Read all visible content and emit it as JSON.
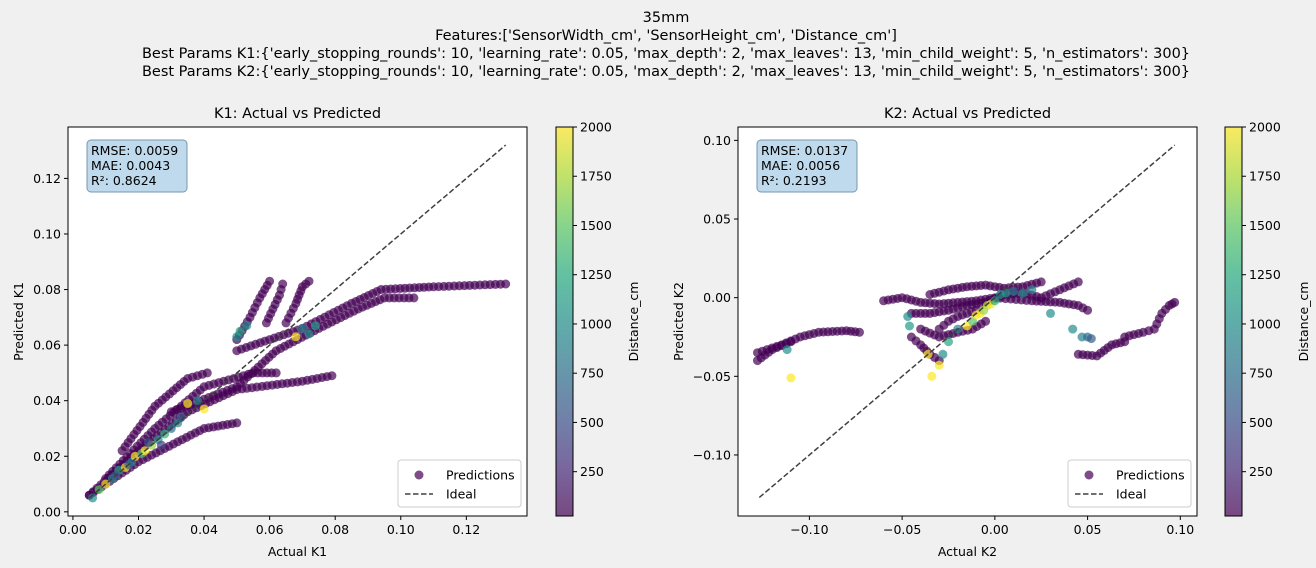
{
  "figure": {
    "title_lines": [
      "35mm",
      "Features:['SensorWidth_cm', 'SensorHeight_cm', 'Distance_cm']",
      "Best Params K1:{'early_stopping_rounds': 10, 'learning_rate': 0.05, 'max_depth': 2, 'max_leaves': 13, 'min_child_weight': 5, 'n_estimators': 300}",
      "Best Params K2:{'early_stopping_rounds': 10, 'learning_rate': 0.05, 'max_depth': 2, 'max_leaves': 13, 'min_child_weight': 5, 'n_estimators': 300}"
    ],
    "colormap": "viridis",
    "point_alpha": 0.7,
    "ideal_line_color": "#404040"
  },
  "chart_data": [
    {
      "type": "scatter",
      "title": "K1: Actual vs Predicted",
      "xlabel": "Actual K1",
      "ylabel": "Predicted K1",
      "xlim": [
        -0.0015,
        0.1385
      ],
      "ylim": [
        -0.0015,
        0.1385
      ],
      "xticks": [
        0.0,
        0.02,
        0.04,
        0.06,
        0.08,
        0.1,
        0.12
      ],
      "xtick_labels": [
        "0.00",
        "0.02",
        "0.04",
        "0.06",
        "0.08",
        "0.10",
        "0.12"
      ],
      "yticks": [
        0.0,
        0.02,
        0.04,
        0.06,
        0.08,
        0.1,
        0.12
      ],
      "ytick_labels": [
        "0.00",
        "0.02",
        "0.04",
        "0.06",
        "0.08",
        "0.10",
        "0.12"
      ],
      "ideal_line": [
        [
          0.005,
          0.005
        ],
        [
          0.132,
          0.132
        ]
      ],
      "stats": [
        "RMSE: 0.0059",
        "MAE: 0.0043",
        "R²: 0.8624"
      ],
      "legend": {
        "placement": "lower-right",
        "entries": [
          "Predictions",
          "Ideal"
        ]
      },
      "colorbar": {
        "label": "Distance_cm",
        "min": 25,
        "max": 2000,
        "ticks": [
          250,
          500,
          750,
          1000,
          1250,
          1500,
          1750,
          2000
        ],
        "tick_labels": [
          "250",
          "500",
          "750",
          "1000",
          "1250",
          "1500",
          "1750",
          "2000"
        ]
      },
      "trajectories": [
        {
          "c": 25,
          "pts": [
            [
              0.005,
              0.006
            ],
            [
              0.02,
              0.018
            ],
            [
              0.04,
              0.03
            ],
            [
              0.05,
              0.032
            ]
          ]
        },
        {
          "c": 25,
          "pts": [
            [
              0.005,
              0.006
            ],
            [
              0.02,
              0.022
            ],
            [
              0.035,
              0.036
            ],
            [
              0.05,
              0.044
            ],
            [
              0.07,
              0.047
            ],
            [
              0.079,
              0.049
            ]
          ]
        },
        {
          "c": 25,
          "pts": [
            [
              0.01,
              0.012
            ],
            [
              0.025,
              0.03
            ],
            [
              0.04,
              0.045
            ],
            [
              0.055,
              0.05
            ],
            [
              0.062,
              0.05
            ]
          ]
        },
        {
          "c": 25,
          "pts": [
            [
              0.015,
              0.022
            ],
            [
              0.025,
              0.038
            ],
            [
              0.035,
              0.048
            ],
            [
              0.041,
              0.05
            ]
          ]
        },
        {
          "c": 25,
          "pts": [
            [
              0.03,
              0.036
            ],
            [
              0.05,
              0.045
            ],
            [
              0.062,
              0.058
            ],
            [
              0.075,
              0.066
            ],
            [
              0.087,
              0.073
            ],
            [
              0.095,
              0.077
            ],
            [
              0.104,
              0.077
            ]
          ]
        },
        {
          "c": 25,
          "pts": [
            [
              0.05,
              0.058
            ],
            [
              0.07,
              0.066
            ],
            [
              0.085,
              0.075
            ],
            [
              0.094,
              0.08
            ],
            [
              0.11,
              0.081
            ],
            [
              0.132,
              0.082
            ]
          ]
        },
        {
          "c": 25,
          "pts": [
            [
              0.05,
              0.062
            ],
            [
              0.054,
              0.07
            ],
            [
              0.057,
              0.077
            ],
            [
              0.06,
              0.083
            ]
          ]
        },
        {
          "c": 25,
          "pts": [
            [
              0.059,
              0.068
            ],
            [
              0.061,
              0.073
            ],
            [
              0.063,
              0.078
            ],
            [
              0.064,
              0.082
            ]
          ]
        },
        {
          "c": 25,
          "pts": [
            [
              0.065,
              0.068
            ],
            [
              0.068,
              0.075
            ],
            [
              0.07,
              0.081
            ],
            [
              0.072,
              0.083
            ]
          ]
        }
      ],
      "points": [
        [
          0.006,
          0.005,
          1000
        ],
        [
          0.008,
          0.008,
          1500
        ],
        [
          0.01,
          0.01,
          2000
        ],
        [
          0.012,
          0.012,
          1000
        ],
        [
          0.014,
          0.015,
          1200
        ],
        [
          0.016,
          0.016,
          2000
        ],
        [
          0.018,
          0.018,
          900
        ],
        [
          0.019,
          0.02,
          2000
        ],
        [
          0.021,
          0.021,
          1400
        ],
        [
          0.022,
          0.022,
          2000
        ],
        [
          0.024,
          0.024,
          1700
        ],
        [
          0.026,
          0.026,
          1100
        ],
        [
          0.028,
          0.028,
          1300
        ],
        [
          0.03,
          0.03,
          800
        ],
        [
          0.032,
          0.032,
          1000
        ],
        [
          0.035,
          0.039,
          2000
        ],
        [
          0.038,
          0.04,
          900
        ],
        [
          0.04,
          0.037,
          2000
        ],
        [
          0.05,
          0.063,
          1000
        ],
        [
          0.051,
          0.065,
          1200
        ],
        [
          0.053,
          0.067,
          1000
        ],
        [
          0.068,
          0.063,
          2000
        ],
        [
          0.07,
          0.066,
          900
        ],
        [
          0.072,
          0.064,
          1000
        ],
        [
          0.074,
          0.067,
          1100
        ],
        [
          0.013,
          0.013,
          600
        ],
        [
          0.017,
          0.017,
          700
        ],
        [
          0.023,
          0.025,
          500
        ],
        [
          0.027,
          0.024,
          400
        ],
        [
          0.033,
          0.034,
          600
        ]
      ]
    },
    {
      "type": "scatter",
      "title": "K2: Actual vs Predicted",
      "xlabel": "Actual K2",
      "ylabel": "Predicted K2",
      "xlim": [
        -0.1385,
        0.109
      ],
      "ylim": [
        -0.1388,
        0.1085
      ],
      "xticks": [
        -0.1,
        -0.05,
        0.0,
        0.05,
        0.1
      ],
      "xtick_labels": [
        "−0.10",
        "−0.05",
        "0.00",
        "0.05",
        "0.10"
      ],
      "yticks": [
        -0.1,
        -0.05,
        0.0,
        0.05,
        0.1
      ],
      "ytick_labels": [
        "−0.10",
        "−0.05",
        "0.00",
        "0.05",
        "0.10"
      ],
      "ideal_line": [
        [
          -0.127,
          -0.127
        ],
        [
          0.097,
          0.097
        ]
      ],
      "stats": [
        "RMSE: 0.0137",
        "MAE: 0.0056",
        "R²: 0.2193"
      ],
      "legend": {
        "placement": "lower-right",
        "entries": [
          "Predictions",
          "Ideal"
        ]
      },
      "colorbar": {
        "label": "Distance_cm",
        "min": 25,
        "max": 2000,
        "ticks": [
          250,
          500,
          750,
          1000,
          1250,
          1500,
          1750,
          2000
        ],
        "tick_labels": [
          "250",
          "500",
          "750",
          "1000",
          "1250",
          "1500",
          "1750",
          "2000"
        ]
      },
      "trajectories": [
        {
          "c": 25,
          "pts": [
            [
              -0.128,
              -0.035
            ],
            [
              -0.115,
              -0.03
            ],
            [
              -0.105,
              -0.025
            ],
            [
              -0.095,
              -0.022
            ],
            [
              -0.08,
              -0.021
            ],
            [
              -0.073,
              -0.022
            ]
          ]
        },
        {
          "c": 25,
          "pts": [
            [
              -0.128,
              -0.04
            ],
            [
              -0.12,
              -0.033
            ],
            [
              -0.11,
              -0.028
            ]
          ]
        },
        {
          "c": 25,
          "pts": [
            [
              -0.06,
              -0.002
            ],
            [
              -0.05,
              0.0
            ],
            [
              -0.04,
              -0.003
            ],
            [
              -0.03,
              -0.004
            ],
            [
              -0.02,
              -0.003
            ],
            [
              -0.01,
              -0.002
            ],
            [
              0.0,
              0.0
            ],
            [
              0.02,
              -0.002
            ],
            [
              0.035,
              -0.003
            ],
            [
              0.045,
              -0.005
            ],
            [
              0.05,
              -0.008
            ]
          ]
        },
        {
          "c": 25,
          "pts": [
            [
              -0.045,
              -0.01
            ],
            [
              -0.035,
              -0.01
            ],
            [
              -0.025,
              -0.008
            ],
            [
              -0.015,
              -0.005
            ],
            [
              -0.005,
              -0.003
            ],
            [
              0.005,
              0.002
            ],
            [
              0.015,
              0.003
            ],
            [
              0.025,
              0.0
            ],
            [
              0.035,
              0.005
            ],
            [
              0.045,
              0.01
            ]
          ]
        },
        {
          "c": 25,
          "pts": [
            [
              -0.04,
              -0.02
            ],
            [
              -0.03,
              -0.025
            ],
            [
              -0.02,
              -0.022
            ],
            [
              -0.012,
              -0.02
            ],
            [
              -0.005,
              -0.015
            ]
          ]
        },
        {
          "c": 25,
          "pts": [
            [
              -0.035,
              0.002
            ],
            [
              -0.025,
              0.005
            ],
            [
              -0.015,
              0.007
            ],
            [
              -0.005,
              0.008
            ],
            [
              0.005,
              0.006
            ],
            [
              0.015,
              0.007
            ],
            [
              0.025,
              0.01
            ]
          ]
        },
        {
          "c": 25,
          "pts": [
            [
              0.045,
              -0.036
            ],
            [
              0.055,
              -0.037
            ],
            [
              0.063,
              -0.03
            ],
            [
              0.07,
              -0.028
            ]
          ]
        },
        {
          "c": 25,
          "pts": [
            [
              0.07,
              -0.025
            ],
            [
              0.08,
              -0.022
            ],
            [
              0.086,
              -0.02
            ],
            [
              0.09,
              -0.01
            ],
            [
              0.094,
              -0.005
            ],
            [
              0.097,
              -0.003
            ]
          ]
        },
        {
          "c": 25,
          "pts": [
            [
              -0.045,
              -0.025
            ],
            [
              -0.04,
              -0.03
            ],
            [
              -0.035,
              -0.036
            ],
            [
              -0.03,
              -0.04
            ]
          ]
        },
        {
          "c": 25,
          "pts": [
            [
              -0.03,
              -0.02
            ],
            [
              -0.025,
              -0.015
            ],
            [
              -0.02,
              -0.012
            ],
            [
              -0.015,
              -0.01
            ],
            [
              -0.01,
              -0.008
            ]
          ]
        }
      ],
      "points": [
        [
          -0.11,
          -0.051,
          2000
        ],
        [
          -0.112,
          -0.033,
          1000
        ],
        [
          -0.047,
          -0.012,
          1000
        ],
        [
          -0.046,
          -0.018,
          1100
        ],
        [
          -0.036,
          -0.036,
          2000
        ],
        [
          -0.034,
          -0.05,
          2000
        ],
        [
          -0.03,
          -0.043,
          2000
        ],
        [
          -0.028,
          -0.036,
          1000
        ],
        [
          -0.025,
          -0.028,
          1200
        ],
        [
          -0.02,
          -0.02,
          900
        ],
        [
          -0.015,
          -0.018,
          2000
        ],
        [
          -0.012,
          -0.015,
          1500
        ],
        [
          -0.01,
          -0.011,
          2000
        ],
        [
          -0.008,
          -0.01,
          2000
        ],
        [
          -0.006,
          -0.008,
          1700
        ],
        [
          -0.004,
          -0.005,
          1800
        ],
        [
          -0.002,
          -0.004,
          2000
        ],
        [
          0.0,
          -0.002,
          1300
        ],
        [
          0.003,
          0.002,
          1000
        ],
        [
          0.006,
          0.003,
          1100
        ],
        [
          0.01,
          0.004,
          800
        ],
        [
          0.015,
          0.003,
          1000
        ],
        [
          0.02,
          0.005,
          900
        ],
        [
          0.03,
          -0.01,
          1000
        ],
        [
          0.042,
          -0.02,
          1000
        ],
        [
          0.047,
          -0.025,
          900
        ],
        [
          0.05,
          -0.025,
          700
        ],
        [
          0.052,
          -0.026,
          600
        ]
      ]
    }
  ]
}
